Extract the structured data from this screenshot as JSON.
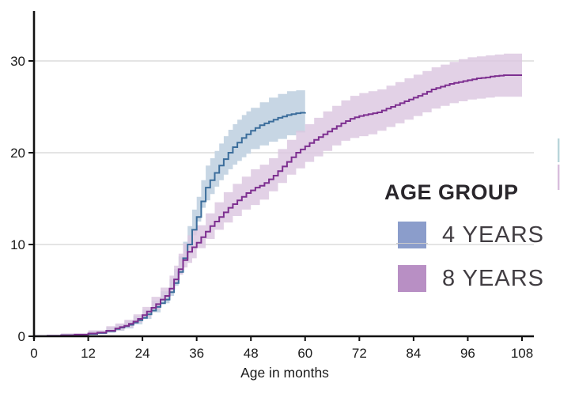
{
  "chart_data": {
    "type": "line",
    "subtype": "step-cumulative-incidence-with-confidence-bands",
    "title": "",
    "xlabel": "Age in months",
    "ylabel": "",
    "xlim": [
      0,
      108
    ],
    "ylim": [
      0,
      35
    ],
    "x_ticks": [
      0,
      12,
      24,
      36,
      48,
      60,
      72,
      84,
      96,
      108
    ],
    "y_ticks": [
      0,
      10,
      20,
      30
    ],
    "grid": "horizontal gridlines at 10, 20, 30",
    "legend": {
      "title": "AGE GROUP",
      "position": "inside-right",
      "entries": [
        {
          "label": "4 YEARS",
          "swatch_color": "#8b9dcb"
        },
        {
          "label": "8 YEARS",
          "swatch_color": "#b88fc4"
        }
      ]
    },
    "series": [
      {
        "name": "4 YEARS",
        "line_color": "#3b6d9b",
        "band_color": "#c7d6e4",
        "points": [
          [
            0,
            0
          ],
          [
            3,
            0.05
          ],
          [
            6,
            0.1
          ],
          [
            9,
            0.15
          ],
          [
            12,
            0.25
          ],
          [
            14,
            0.35
          ],
          [
            16,
            0.55
          ],
          [
            18,
            0.8
          ],
          [
            19,
            0.95
          ],
          [
            20,
            1.1
          ],
          [
            21,
            1.25
          ],
          [
            22,
            1.5
          ],
          [
            23,
            1.75
          ],
          [
            24,
            2.0
          ],
          [
            25,
            2.4
          ],
          [
            26,
            2.8
          ],
          [
            27,
            3.2
          ],
          [
            28,
            3.6
          ],
          [
            29,
            4.0
          ],
          [
            30,
            4.8
          ],
          [
            31,
            5.8
          ],
          [
            32,
            7.0
          ],
          [
            33,
            8.5
          ],
          [
            34,
            10.0
          ],
          [
            35,
            11.6
          ],
          [
            36,
            13.0
          ],
          [
            37,
            14.7
          ],
          [
            38,
            16.2
          ],
          [
            39,
            17.0
          ],
          [
            40,
            17.8
          ],
          [
            41,
            18.6
          ],
          [
            42,
            19.3
          ],
          [
            43,
            20.0
          ],
          [
            44,
            20.6
          ],
          [
            45,
            21.1
          ],
          [
            46,
            21.6
          ],
          [
            47,
            22.0
          ],
          [
            48,
            22.4
          ],
          [
            49,
            22.7
          ],
          [
            50,
            23.0
          ],
          [
            51,
            23.2
          ],
          [
            52,
            23.4
          ],
          [
            53,
            23.6
          ],
          [
            54,
            23.8
          ],
          [
            55,
            23.95
          ],
          [
            56,
            24.1
          ],
          [
            57,
            24.2
          ],
          [
            58,
            24.3
          ],
          [
            59,
            24.35
          ],
          [
            60,
            24.4
          ]
        ],
        "band": [
          [
            0,
            0,
            0.15
          ],
          [
            6,
            0,
            0.3
          ],
          [
            12,
            0.1,
            0.6
          ],
          [
            16,
            0.25,
            1.0
          ],
          [
            18,
            0.4,
            1.3
          ],
          [
            20,
            0.6,
            1.7
          ],
          [
            22,
            0.85,
            2.2
          ],
          [
            24,
            1.3,
            2.9
          ],
          [
            26,
            1.9,
            3.9
          ],
          [
            28,
            2.6,
            4.9
          ],
          [
            30,
            3.6,
            6.2
          ],
          [
            31,
            4.4,
            7.3
          ],
          [
            32,
            5.5,
            8.7
          ],
          [
            33,
            6.8,
            10.3
          ],
          [
            34,
            8.2,
            12.0
          ],
          [
            35,
            9.6,
            13.8
          ],
          [
            36,
            11.0,
            15.2
          ],
          [
            37,
            12.5,
            17.0
          ],
          [
            38,
            14.0,
            18.6
          ],
          [
            39,
            14.8,
            19.4
          ],
          [
            40,
            15.5,
            20.2
          ],
          [
            41,
            16.3,
            21.0
          ],
          [
            42,
            17.0,
            21.8
          ],
          [
            43,
            17.6,
            22.5
          ],
          [
            44,
            18.2,
            23.1
          ],
          [
            45,
            18.7,
            23.6
          ],
          [
            46,
            19.1,
            24.1
          ],
          [
            47,
            19.5,
            24.5
          ],
          [
            48,
            19.9,
            24.9
          ],
          [
            50,
            20.4,
            25.5
          ],
          [
            52,
            20.8,
            26.0
          ],
          [
            54,
            21.2,
            26.4
          ],
          [
            56,
            21.5,
            26.7
          ],
          [
            58,
            21.9,
            26.8
          ],
          [
            60,
            22.2,
            26.7
          ]
        ]
      },
      {
        "name": "8 YEARS",
        "line_color": "#7d2f90",
        "band_color": "#dcc7e1",
        "points": [
          [
            0,
            0
          ],
          [
            3,
            0.05
          ],
          [
            6,
            0.1
          ],
          [
            9,
            0.18
          ],
          [
            12,
            0.3
          ],
          [
            14,
            0.4
          ],
          [
            16,
            0.6
          ],
          [
            18,
            0.85
          ],
          [
            19,
            1.0
          ],
          [
            20,
            1.15
          ],
          [
            21,
            1.35
          ],
          [
            22,
            1.6
          ],
          [
            23,
            1.9
          ],
          [
            24,
            2.3
          ],
          [
            25,
            2.7
          ],
          [
            26,
            3.1
          ],
          [
            27,
            3.5
          ],
          [
            28,
            4.0
          ],
          [
            29,
            4.4
          ],
          [
            30,
            5.2
          ],
          [
            31,
            6.2
          ],
          [
            32,
            7.3
          ],
          [
            33,
            8.3
          ],
          [
            34,
            9.2
          ],
          [
            35,
            9.7
          ],
          [
            36,
            10.2
          ],
          [
            37,
            10.8
          ],
          [
            38,
            11.4
          ],
          [
            39,
            12.0
          ],
          [
            40,
            12.5
          ],
          [
            41,
            13.0
          ],
          [
            42,
            13.5
          ],
          [
            43,
            14.0
          ],
          [
            44,
            14.4
          ],
          [
            45,
            14.8
          ],
          [
            46,
            15.2
          ],
          [
            47,
            15.6
          ],
          [
            48,
            15.9
          ],
          [
            49,
            16.2
          ],
          [
            50,
            16.4
          ],
          [
            51,
            16.7
          ],
          [
            52,
            17.1
          ],
          [
            53,
            17.5
          ],
          [
            54,
            18.0
          ],
          [
            55,
            18.5
          ],
          [
            56,
            19.0
          ],
          [
            57,
            19.5
          ],
          [
            58,
            20.0
          ],
          [
            59,
            20.35
          ],
          [
            60,
            20.7
          ],
          [
            61,
            21.05
          ],
          [
            62,
            21.4
          ],
          [
            63,
            21.7
          ],
          [
            64,
            22.0
          ],
          [
            65,
            22.3
          ],
          [
            66,
            22.6
          ],
          [
            67,
            22.9
          ],
          [
            68,
            23.2
          ],
          [
            69,
            23.45
          ],
          [
            70,
            23.7
          ],
          [
            71,
            23.85
          ],
          [
            72,
            24.0
          ],
          [
            73,
            24.1
          ],
          [
            74,
            24.2
          ],
          [
            75,
            24.3
          ],
          [
            76,
            24.4
          ],
          [
            77,
            24.6
          ],
          [
            78,
            24.8
          ],
          [
            79,
            25.0
          ],
          [
            80,
            25.2
          ],
          [
            81,
            25.4
          ],
          [
            82,
            25.6
          ],
          [
            83,
            25.8
          ],
          [
            84,
            26.0
          ],
          [
            85,
            26.2
          ],
          [
            86,
            26.4
          ],
          [
            87,
            26.65
          ],
          [
            88,
            26.9
          ],
          [
            89,
            27.05
          ],
          [
            90,
            27.2
          ],
          [
            91,
            27.35
          ],
          [
            92,
            27.5
          ],
          [
            93,
            27.6
          ],
          [
            94,
            27.7
          ],
          [
            95,
            27.8
          ],
          [
            96,
            27.9
          ],
          [
            97,
            28.0
          ],
          [
            98,
            28.1
          ],
          [
            99,
            28.15
          ],
          [
            100,
            28.2
          ],
          [
            101,
            28.3
          ],
          [
            102,
            28.35
          ],
          [
            103,
            28.4
          ],
          [
            104,
            28.45
          ],
          [
            106,
            28.45
          ],
          [
            108,
            28.45
          ]
        ],
        "band": [
          [
            0,
            0,
            0.15
          ],
          [
            6,
            0,
            0.3
          ],
          [
            12,
            0.1,
            0.65
          ],
          [
            16,
            0.3,
            1.1
          ],
          [
            18,
            0.45,
            1.4
          ],
          [
            20,
            0.65,
            1.8
          ],
          [
            22,
            0.95,
            2.4
          ],
          [
            24,
            1.5,
            3.2
          ],
          [
            26,
            2.1,
            4.3
          ],
          [
            28,
            2.9,
            5.3
          ],
          [
            30,
            4.0,
            6.6
          ],
          [
            31,
            4.8,
            7.7
          ],
          [
            32,
            5.8,
            9.0
          ],
          [
            33,
            6.7,
            10.1
          ],
          [
            34,
            7.5,
            11.0
          ],
          [
            35,
            8.0,
            11.6
          ],
          [
            36,
            8.5,
            12.1
          ],
          [
            38,
            9.6,
            13.4
          ],
          [
            40,
            10.6,
            14.6
          ],
          [
            42,
            11.6,
            15.7
          ],
          [
            44,
            12.4,
            16.6
          ],
          [
            46,
            13.1,
            17.4
          ],
          [
            48,
            13.8,
            18.2
          ],
          [
            50,
            14.3,
            18.7
          ],
          [
            52,
            14.9,
            19.4
          ],
          [
            54,
            15.8,
            20.4
          ],
          [
            56,
            16.7,
            21.4
          ],
          [
            58,
            17.6,
            22.4
          ],
          [
            60,
            18.3,
            23.1
          ],
          [
            62,
            19.0,
            23.8
          ],
          [
            64,
            19.6,
            24.5
          ],
          [
            66,
            20.2,
            25.1
          ],
          [
            68,
            20.8,
            25.7
          ],
          [
            70,
            21.3,
            26.2
          ],
          [
            72,
            21.6,
            26.5
          ],
          [
            74,
            21.8,
            26.7
          ],
          [
            76,
            22.0,
            26.9
          ],
          [
            78,
            22.4,
            27.3
          ],
          [
            80,
            22.8,
            27.7
          ],
          [
            82,
            23.2,
            28.1
          ],
          [
            84,
            23.6,
            28.5
          ],
          [
            86,
            24.0,
            28.9
          ],
          [
            88,
            24.4,
            29.3
          ],
          [
            90,
            24.8,
            29.6
          ],
          [
            92,
            25.1,
            29.9
          ],
          [
            94,
            25.4,
            30.2
          ],
          [
            96,
            25.6,
            30.4
          ],
          [
            98,
            25.8,
            30.5
          ],
          [
            100,
            25.9,
            30.6
          ],
          [
            102,
            26.0,
            30.7
          ],
          [
            104,
            26.1,
            30.8
          ],
          [
            108,
            26.1,
            30.8
          ]
        ]
      }
    ],
    "annotations": {
      "right_edge_clipped_marks": [
        {
          "color": "#b9d5da"
        },
        {
          "color": "#d8bedd"
        }
      ]
    }
  },
  "style_colors": {
    "axis": "#111111",
    "gridline": "#d4d4d4",
    "tick_text": "#1b1b1b",
    "legend_title_text": "#29262b",
    "legend_label_text": "#413d42"
  }
}
